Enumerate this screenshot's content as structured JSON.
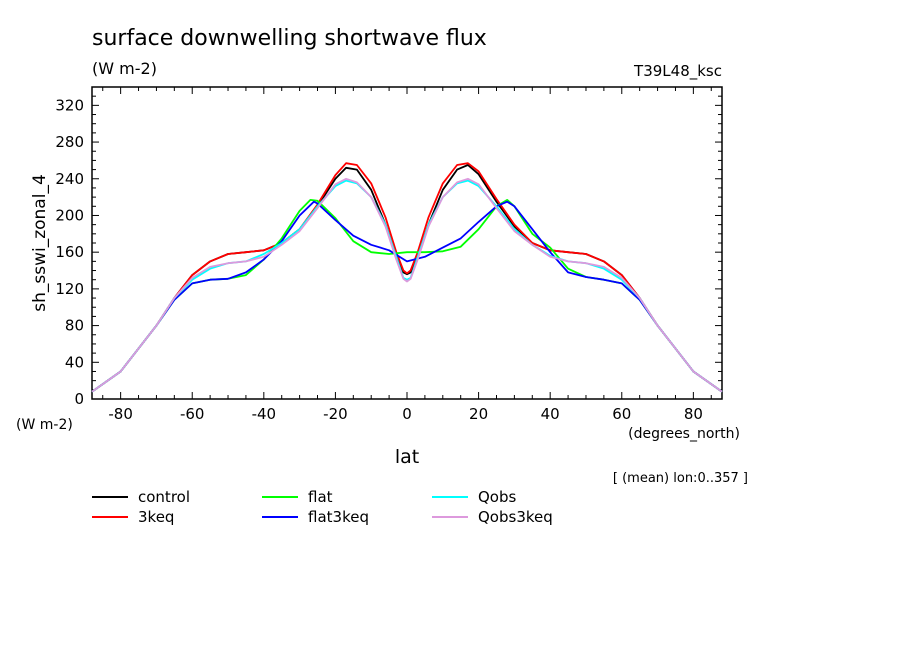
{
  "chart_data": {
    "type": "line",
    "title": "surface downwelling shortwave flux",
    "units_label": "(W m-2)",
    "run_label": "T39L48_ksc",
    "ylabel": "sh_sswi_zonal_4",
    "y_units_label": "(W m-2)",
    "xlabel": "lat",
    "x_units_label": "(degrees_north)",
    "footnote": "[ (mean) lon:0..357 ]",
    "xlim": [
      -88,
      88
    ],
    "ylim": [
      0,
      340
    ],
    "x_ticks": [
      -80,
      -60,
      -40,
      -20,
      0,
      20,
      40,
      60,
      80
    ],
    "y_ticks": [
      0,
      40,
      80,
      120,
      160,
      200,
      240,
      280,
      320
    ],
    "grid": false,
    "legend_position": "bottom",
    "series": [
      {
        "name": "control",
        "color": "#000000",
        "x": [
          -88,
          -80,
          -70,
          -65,
          -60,
          -55,
          -50,
          -45,
          -40,
          -35,
          -30,
          -25,
          -20,
          -17,
          -14,
          -10,
          -6,
          -3,
          -1,
          0,
          1,
          3,
          6,
          10,
          14,
          17,
          20,
          25,
          30,
          35,
          40,
          45,
          50,
          55,
          60,
          65,
          70,
          80,
          88
        ],
        "y": [
          8,
          30,
          80,
          110,
          135,
          150,
          158,
          160,
          162,
          170,
          185,
          210,
          240,
          252,
          250,
          228,
          190,
          155,
          138,
          136,
          138,
          155,
          190,
          228,
          250,
          255,
          245,
          215,
          188,
          170,
          162,
          160,
          158,
          150,
          135,
          110,
          80,
          30,
          8
        ]
      },
      {
        "name": "3keq",
        "color": "#ff0000",
        "x": [
          -88,
          -80,
          -70,
          -65,
          -60,
          -55,
          -50,
          -45,
          -40,
          -35,
          -30,
          -25,
          -20,
          -17,
          -14,
          -10,
          -6,
          -3,
          -1,
          0,
          1,
          3,
          6,
          10,
          14,
          17,
          20,
          25,
          30,
          35,
          40,
          45,
          50,
          55,
          60,
          65,
          70,
          80,
          88
        ],
        "y": [
          8,
          30,
          80,
          110,
          135,
          150,
          158,
          160,
          162,
          170,
          185,
          212,
          244,
          257,
          255,
          235,
          198,
          160,
          140,
          137,
          140,
          160,
          198,
          235,
          255,
          257,
          248,
          218,
          190,
          170,
          162,
          160,
          158,
          150,
          135,
          110,
          80,
          30,
          8
        ]
      },
      {
        "name": "flat",
        "color": "#00ff00",
        "x": [
          -88,
          -80,
          -70,
          -65,
          -60,
          -55,
          -50,
          -45,
          -40,
          -35,
          -30,
          -27,
          -25,
          -20,
          -15,
          -10,
          -5,
          0,
          5,
          10,
          15,
          20,
          25,
          28,
          30,
          35,
          40,
          45,
          50,
          55,
          60,
          65,
          70,
          80,
          88
        ],
        "y": [
          8,
          30,
          80,
          108,
          126,
          130,
          131,
          135,
          152,
          175,
          205,
          217,
          216,
          197,
          172,
          160,
          158,
          160,
          160,
          161,
          166,
          185,
          210,
          217,
          210,
          180,
          165,
          142,
          133,
          130,
          126,
          108,
          80,
          30,
          8
        ]
      },
      {
        "name": "flat3keq",
        "color": "#0000ff",
        "x": [
          -88,
          -80,
          -70,
          -65,
          -60,
          -55,
          -50,
          -45,
          -40,
          -35,
          -30,
          -26,
          -25,
          -20,
          -15,
          -10,
          -5,
          0,
          5,
          10,
          15,
          20,
          25,
          28,
          30,
          35,
          40,
          45,
          50,
          55,
          60,
          65,
          70,
          80,
          88
        ],
        "y": [
          8,
          30,
          80,
          108,
          126,
          130,
          131,
          138,
          152,
          172,
          200,
          215,
          213,
          195,
          178,
          168,
          162,
          150,
          155,
          165,
          175,
          193,
          210,
          215,
          210,
          185,
          160,
          138,
          133,
          130,
          126,
          108,
          80,
          30,
          8
        ]
      },
      {
        "name": "Qobs",
        "color": "#00ffff",
        "x": [
          -88,
          -80,
          -70,
          -65,
          -60,
          -55,
          -50,
          -45,
          -40,
          -35,
          -30,
          -25,
          -20,
          -17,
          -14,
          -10,
          -6,
          -3,
          -1,
          0,
          1,
          3,
          6,
          10,
          14,
          17,
          20,
          25,
          30,
          35,
          40,
          45,
          50,
          55,
          60,
          65,
          70,
          80,
          88
        ],
        "y": [
          8,
          30,
          80,
          110,
          130,
          142,
          148,
          150,
          158,
          170,
          185,
          210,
          232,
          238,
          235,
          220,
          190,
          155,
          132,
          130,
          132,
          155,
          190,
          220,
          235,
          238,
          232,
          210,
          185,
          168,
          156,
          150,
          148,
          142,
          130,
          110,
          80,
          30,
          8
        ]
      },
      {
        "name": "Qobs3keq",
        "color": "#dd99dd",
        "x": [
          -88,
          -80,
          -70,
          -65,
          -60,
          -55,
          -50,
          -45,
          -40,
          -35,
          -30,
          -25,
          -20,
          -17,
          -14,
          -10,
          -6,
          -3,
          -1,
          0,
          1,
          3,
          6,
          10,
          14,
          17,
          20,
          25,
          30,
          35,
          40,
          45,
          50,
          55,
          60,
          65,
          70,
          80,
          88
        ],
        "y": [
          8,
          30,
          80,
          110,
          132,
          144,
          148,
          150,
          155,
          168,
          183,
          208,
          234,
          240,
          236,
          220,
          188,
          152,
          131,
          128,
          131,
          152,
          188,
          220,
          236,
          240,
          234,
          208,
          183,
          168,
          155,
          150,
          148,
          144,
          132,
          110,
          80,
          30,
          8
        ]
      }
    ]
  }
}
